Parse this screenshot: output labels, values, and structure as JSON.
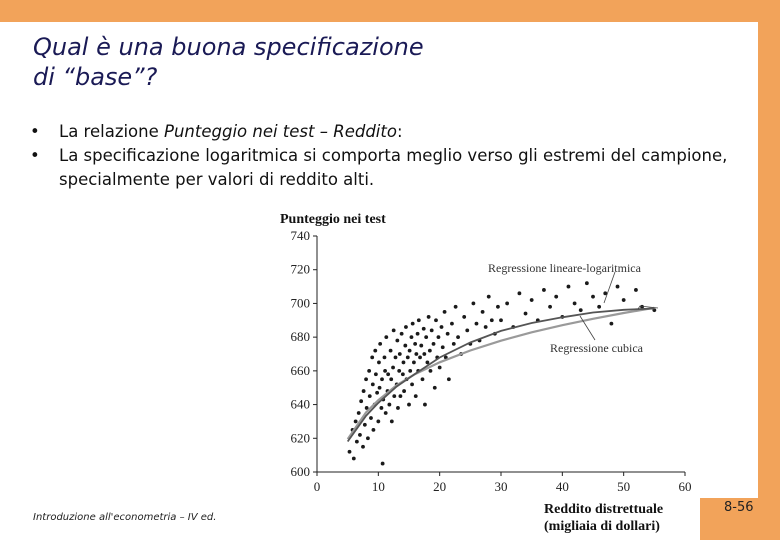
{
  "slide": {
    "title_line1": "Qual è una buona specificazione",
    "title_line2": "di “base”?",
    "bullets": [
      {
        "prefix": "La relazione ",
        "emph": "Punteggio nei test – Reddito",
        "suffix": ":"
      },
      {
        "prefix": "La specificazione logaritmica si comporta meglio verso gli estremi del campione, specialmente per valori di reddito alti.",
        "emph": "",
        "suffix": ""
      }
    ],
    "footer": "Introduzione all'econometria – IV ed.",
    "page_number": "8-56",
    "accent_color": "#f2a35a"
  },
  "chart_data": {
    "type": "scatter",
    "ylabel": "Punteggio nei test",
    "xlabel_line1": "Reddito distrettuale",
    "xlabel_line2": "(migliaia di dollari)",
    "xlim": [
      0,
      60
    ],
    "ylim": [
      600,
      740
    ],
    "x_ticks": [
      0,
      10,
      20,
      30,
      40,
      50,
      60
    ],
    "y_ticks": [
      600,
      620,
      640,
      660,
      680,
      700,
      720,
      740
    ],
    "annotations": [
      "Regressione lineare-logaritmica",
      "Regressione cubica"
    ],
    "series": [
      {
        "name": "Regressione lineare-logaritmica",
        "kind": "line",
        "color": "#9a9a9a",
        "x": [
          5,
          8,
          10,
          13,
          16,
          20,
          25,
          30,
          35,
          40,
          45,
          50,
          55
        ],
        "y": [
          619.5,
          635.4,
          642.6,
          651.5,
          658.1,
          665.1,
          672.1,
          677.9,
          682.9,
          687.1,
          690.9,
          694.3,
          697.4
        ]
      },
      {
        "name": "Regressione cubica",
        "kind": "line",
        "color": "#555555",
        "x": [
          5,
          8,
          10,
          13,
          16,
          20,
          25,
          30,
          35,
          40,
          45,
          50,
          55
        ],
        "y": [
          618.1,
          633.4,
          641.0,
          650.7,
          658.2,
          667.9,
          676.8,
          683.7,
          688.4,
          691.8,
          694.6,
          696.2,
          697.0
        ]
      }
    ],
    "scatter": {
      "color": "#1a1a1a",
      "points": [
        [
          5.3,
          612
        ],
        [
          5.8,
          625
        ],
        [
          6.0,
          608
        ],
        [
          6.3,
          630
        ],
        [
          6.5,
          618
        ],
        [
          6.8,
          635
        ],
        [
          7.0,
          622
        ],
        [
          7.2,
          642
        ],
        [
          7.5,
          615
        ],
        [
          7.6,
          648
        ],
        [
          7.8,
          628
        ],
        [
          8.0,
          655
        ],
        [
          8.1,
          638
        ],
        [
          8.3,
          620
        ],
        [
          8.5,
          660
        ],
        [
          8.6,
          645
        ],
        [
          8.8,
          632
        ],
        [
          9.0,
          668
        ],
        [
          9.1,
          652
        ],
        [
          9.2,
          625
        ],
        [
          9.4,
          640
        ],
        [
          9.5,
          672
        ],
        [
          9.6,
          658
        ],
        [
          9.8,
          647
        ],
        [
          10.0,
          630
        ],
        [
          10.1,
          665
        ],
        [
          10.2,
          650
        ],
        [
          10.3,
          676
        ],
        [
          10.5,
          638
        ],
        [
          10.6,
          655
        ],
        [
          10.7,
          605
        ],
        [
          10.8,
          643
        ],
        [
          11.0,
          668
        ],
        [
          11.1,
          660
        ],
        [
          11.2,
          635
        ],
        [
          11.3,
          680
        ],
        [
          11.5,
          648
        ],
        [
          11.6,
          658
        ],
        [
          11.8,
          640
        ],
        [
          12.0,
          672
        ],
        [
          12.1,
          655
        ],
        [
          12.2,
          630
        ],
        [
          12.4,
          662
        ],
        [
          12.5,
          684
        ],
        [
          12.6,
          645
        ],
        [
          12.8,
          668
        ],
        [
          13.0,
          652
        ],
        [
          13.1,
          678
        ],
        [
          13.2,
          638
        ],
        [
          13.4,
          660
        ],
        [
          13.5,
          670
        ],
        [
          13.6,
          645
        ],
        [
          13.8,
          682
        ],
        [
          14.0,
          658
        ],
        [
          14.1,
          665
        ],
        [
          14.2,
          648
        ],
        [
          14.4,
          675
        ],
        [
          14.5,
          686
        ],
        [
          14.6,
          655
        ],
        [
          14.8,
          668
        ],
        [
          15.0,
          640
        ],
        [
          15.1,
          672
        ],
        [
          15.2,
          660
        ],
        [
          15.4,
          680
        ],
        [
          15.5,
          652
        ],
        [
          15.6,
          688
        ],
        [
          15.8,
          665
        ],
        [
          16.0,
          676
        ],
        [
          16.1,
          645
        ],
        [
          16.2,
          670
        ],
        [
          16.4,
          682
        ],
        [
          16.5,
          660
        ],
        [
          16.6,
          690
        ],
        [
          16.8,
          668
        ],
        [
          17.0,
          675
        ],
        [
          17.2,
          655
        ],
        [
          17.4,
          685
        ],
        [
          17.5,
          670
        ],
        [
          17.6,
          640
        ],
        [
          17.8,
          680
        ],
        [
          18.0,
          665
        ],
        [
          18.2,
          692
        ],
        [
          18.4,
          672
        ],
        [
          18.5,
          660
        ],
        [
          18.7,
          684
        ],
        [
          19.0,
          676
        ],
        [
          19.2,
          650
        ],
        [
          19.4,
          690
        ],
        [
          19.6,
          668
        ],
        [
          19.8,
          680
        ],
        [
          20.0,
          662
        ],
        [
          20.3,
          686
        ],
        [
          20.5,
          674
        ],
        [
          20.8,
          695
        ],
        [
          21.0,
          668
        ],
        [
          21.3,
          682
        ],
        [
          21.5,
          655
        ],
        [
          22.0,
          688
        ],
        [
          22.3,
          676
        ],
        [
          22.6,
          698
        ],
        [
          23.0,
          680
        ],
        [
          23.5,
          670
        ],
        [
          24.0,
          692
        ],
        [
          24.5,
          684
        ],
        [
          25.0,
          676
        ],
        [
          25.5,
          700
        ],
        [
          26.0,
          688
        ],
        [
          26.5,
          678
        ],
        [
          27.0,
          695
        ],
        [
          27.5,
          686
        ],
        [
          28.0,
          704
        ],
        [
          28.5,
          690
        ],
        [
          29.0,
          682
        ],
        [
          29.5,
          698
        ],
        [
          30.0,
          690
        ],
        [
          31.0,
          700
        ],
        [
          32.0,
          686
        ],
        [
          33.0,
          706
        ],
        [
          34.0,
          694
        ],
        [
          35.0,
          702
        ],
        [
          36.0,
          690
        ],
        [
          37.0,
          708
        ],
        [
          38.0,
          698
        ],
        [
          39.0,
          704
        ],
        [
          40.0,
          692
        ],
        [
          41.0,
          710
        ],
        [
          42.0,
          700
        ],
        [
          43.0,
          696
        ],
        [
          44.0,
          712
        ],
        [
          45.0,
          704
        ],
        [
          46.0,
          698
        ],
        [
          47.0,
          706
        ],
        [
          48.0,
          688
        ],
        [
          49.0,
          710
        ],
        [
          50.0,
          702
        ],
        [
          52.0,
          708
        ],
        [
          53.0,
          698
        ],
        [
          55.0,
          696
        ]
      ]
    }
  }
}
